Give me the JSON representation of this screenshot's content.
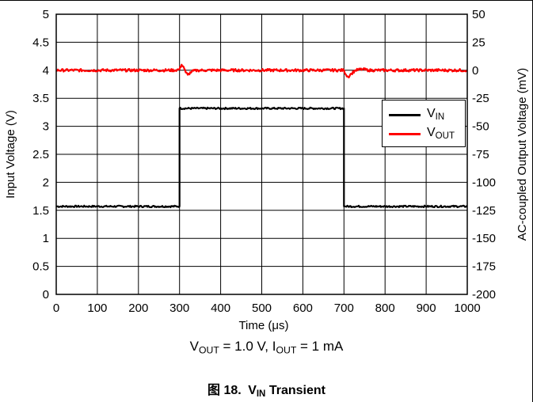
{
  "chart_data": {
    "type": "line",
    "xlabel_text": "Time (",
    "xlabel_mu": "μ",
    "xlabel_tail": "s)",
    "ylabel_left": "Input Voltage (V)",
    "ylabel_right": "AC-coupled Output Voltage (mV)",
    "xlim": [
      0,
      1000
    ],
    "ylim_left": [
      0,
      5
    ],
    "ylim_right": [
      -200,
      50
    ],
    "x_ticks": [
      0,
      100,
      200,
      300,
      400,
      500,
      600,
      700,
      800,
      900,
      1000
    ],
    "x_tick_labels": [
      "0",
      "100",
      "200",
      "300",
      "400",
      "500",
      "600",
      "700",
      "800",
      "900",
      "1000"
    ],
    "y_left_ticks": [
      0,
      0.5,
      1,
      1.5,
      2,
      2.5,
      3,
      3.5,
      4,
      4.5,
      5
    ],
    "y_left_tick_labels": [
      "0",
      "0.5",
      "1",
      "1.5",
      "2",
      "2.5",
      "3",
      "3.5",
      "4",
      "4.5",
      "5"
    ],
    "y_right_ticks": [
      -200,
      -175,
      -150,
      -125,
      -100,
      -75,
      -50,
      -25,
      0,
      25,
      50
    ],
    "y_right_tick_labels": [
      "-200",
      "-175",
      "-150",
      "-125",
      "-100",
      "-75",
      "-50",
      "-25",
      "0",
      "25",
      "50"
    ],
    "grid": true,
    "legend_position": "right",
    "series": [
      {
        "name_main": "V",
        "name_sub": "IN",
        "color": "#000000",
        "axis": "left",
        "x": [
          0,
          300,
          300,
          700,
          700,
          1000
        ],
        "y": [
          1.57,
          1.57,
          3.32,
          3.32,
          1.57,
          1.57
        ]
      },
      {
        "name_main": "V",
        "name_sub": "OUT",
        "color": "#ff0000",
        "axis": "right",
        "x": [
          0,
          290,
          300,
          305,
          310,
          315,
          320,
          330,
          345,
          360,
          700,
          705,
          710,
          718,
          728,
          745,
          760,
          1000
        ],
        "y": [
          0,
          0,
          1,
          5,
          3,
          -2,
          -4,
          -1,
          0,
          0,
          0,
          -4,
          -6,
          -3,
          0,
          1,
          0,
          0
        ]
      }
    ]
  },
  "condition": {
    "v_main": "V",
    "v_sub": "OUT",
    "v_value": " = 1.0 V, I",
    "i_sub": "OUT",
    "i_value": " = 1 mA"
  },
  "figure": {
    "label": "图 18.",
    "name_main": "V",
    "name_sub": "IN",
    "name_tail": " Transient"
  }
}
